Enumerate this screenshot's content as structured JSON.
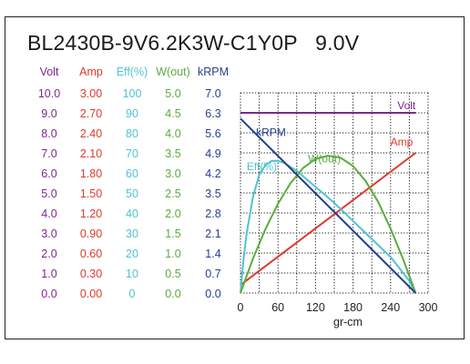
{
  "chart_data": {
    "type": "line",
    "title": "BL2430B-9V6.2K3W-C1Y0P   9.0V",
    "xlabel": "gr-cm",
    "xlim": [
      0,
      300
    ],
    "x_ticks": [
      "0",
      "60",
      "120",
      "180",
      "240",
      "300"
    ],
    "grid": true,
    "colors": {
      "Volt": "#7b2a8c",
      "Amp": "#e0392b",
      "Eff": "#4fc3d4",
      "W": "#5aad3c",
      "kRPM": "#253f8e"
    },
    "axis_columns": [
      {
        "key": "Volt",
        "header": "Volt",
        "ticks": [
          "10.0",
          "9.0",
          "8.0",
          "7.0",
          "6.0",
          "5.0",
          "4.0",
          "3.0",
          "2.0",
          "1.0",
          "0.0"
        ]
      },
      {
        "key": "Amp",
        "header": "Amp",
        "ticks": [
          "3.00",
          "2.70",
          "2.40",
          "2.10",
          "1.80",
          "1.50",
          "1.20",
          "0.90",
          "0.60",
          "0.30",
          "0.00"
        ]
      },
      {
        "key": "Eff",
        "header": "Eff(%)",
        "ticks": [
          "100",
          "90",
          "80",
          "70",
          "60",
          "50",
          "40",
          "30",
          "20",
          "10",
          "0"
        ]
      },
      {
        "key": "W",
        "header": "W(out)",
        "ticks": [
          "5.0",
          "4.5",
          "4.0",
          "3.5",
          "3.0",
          "2.5",
          "2.0",
          "1.5",
          "1.0",
          "0.5",
          "0.0"
        ]
      },
      {
        "key": "kRPM",
        "header": "kRPM",
        "ticks": [
          "7.0",
          "6.3",
          "5.6",
          "4.9",
          "4.2",
          "3.5",
          "2.8",
          "2.1",
          "1.4",
          "0.7",
          "0.0"
        ]
      }
    ],
    "series": [
      {
        "name": "Volt",
        "key": "Volt",
        "ymax": 10,
        "x": [
          0,
          280
        ],
        "y": [
          9.0,
          9.0
        ]
      },
      {
        "name": "Amp",
        "key": "Amp",
        "ymax": 3,
        "x": [
          0,
          280
        ],
        "y": [
          0.12,
          2.1
        ]
      },
      {
        "name": "Eff(%)",
        "key": "Eff",
        "ymax": 100,
        "x": [
          0,
          5,
          10,
          20,
          30,
          40,
          50,
          60,
          70,
          90,
          120,
          150,
          180,
          210,
          240,
          270,
          280
        ],
        "y": [
          0,
          17,
          30,
          48,
          59,
          64,
          66,
          66,
          65,
          61,
          53,
          45,
          36,
          27,
          18,
          6,
          0
        ]
      },
      {
        "name": "W(out)",
        "key": "W",
        "ymax": 5,
        "x": [
          0,
          20,
          40,
          60,
          80,
          100,
          120,
          140,
          160,
          180,
          200,
          220,
          240,
          260,
          280
        ],
        "y": [
          0,
          0.86,
          1.6,
          2.23,
          2.74,
          3.12,
          3.35,
          3.43,
          3.38,
          3.17,
          2.8,
          2.28,
          1.61,
          0.85,
          0.0
        ]
      },
      {
        "name": "kRPM",
        "key": "kRPM",
        "ymax": 7,
        "x": [
          0,
          280
        ],
        "y": [
          6.1,
          0.0
        ]
      }
    ]
  }
}
